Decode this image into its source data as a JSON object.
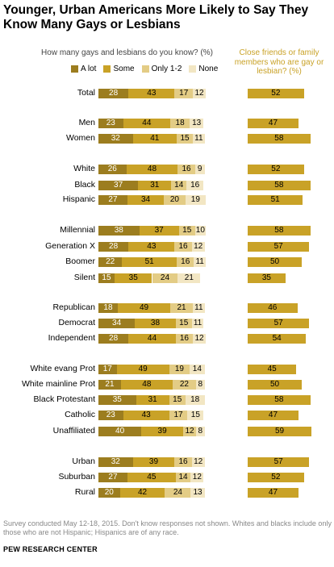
{
  "chart_data": {
    "type": "bar",
    "title": "Younger, Urban Americans More Likely to Say They Know Many Gays or Lesbians",
    "subtitle": "How many gays and lesbians do you know? (%)",
    "right_header": "Close friends or family members who are gay or lesbian? (%)",
    "legend": [
      "A lot",
      "Some",
      "Only 1-2",
      "None"
    ],
    "colors": {
      "a_lot": "#9c7d1f",
      "some": "#c9a227",
      "only12": "#e3cc85",
      "none": "#f2e6c3",
      "close": "#c9a227"
    },
    "rows": [
      {
        "label": "Total",
        "a_lot": 28,
        "some": 43,
        "only12": 17,
        "none": 12,
        "close": 52
      },
      {
        "label": "Men",
        "a_lot": 23,
        "some": 44,
        "only12": 18,
        "none": 13,
        "close": 47
      },
      {
        "label": "Women",
        "a_lot": 32,
        "some": 41,
        "only12": 15,
        "none": 11,
        "close": 58
      },
      {
        "label": "White",
        "a_lot": 26,
        "some": 48,
        "only12": 16,
        "none": 9,
        "close": 52
      },
      {
        "label": "Black",
        "a_lot": 37,
        "some": 31,
        "only12": 14,
        "none": 16,
        "close": 58
      },
      {
        "label": "Hispanic",
        "a_lot": 27,
        "some": 34,
        "only12": 20,
        "none": 19,
        "close": 51
      },
      {
        "label": "Millennial",
        "a_lot": 38,
        "some": 37,
        "only12": 15,
        "none": 10,
        "close": 58
      },
      {
        "label": "Generation X",
        "a_lot": 28,
        "some": 43,
        "only12": 16,
        "none": 12,
        "close": 57
      },
      {
        "label": "Boomer",
        "a_lot": 22,
        "some": 51,
        "only12": 16,
        "none": 11,
        "close": 50
      },
      {
        "label": "Silent",
        "a_lot": 15,
        "some": 35,
        "only12": 24,
        "none": 21,
        "close": 35
      },
      {
        "label": "Republican",
        "a_lot": 18,
        "some": 49,
        "only12": 21,
        "none": 11,
        "close": 46
      },
      {
        "label": "Democrat",
        "a_lot": 34,
        "some": 38,
        "only12": 15,
        "none": 11,
        "close": 57
      },
      {
        "label": "Independent",
        "a_lot": 28,
        "some": 44,
        "only12": 16,
        "none": 12,
        "close": 54
      },
      {
        "label": "White evang Prot",
        "a_lot": 17,
        "some": 49,
        "only12": 19,
        "none": 14,
        "close": 45
      },
      {
        "label": "White mainline Prot",
        "a_lot": 21,
        "some": 48,
        "only12": 22,
        "none": 8,
        "close": 50
      },
      {
        "label": "Black Protestant",
        "a_lot": 35,
        "some": 31,
        "only12": 15,
        "none": 18,
        "close": 58
      },
      {
        "label": "Catholic",
        "a_lot": 23,
        "some": 43,
        "only12": 17,
        "none": 15,
        "close": 47
      },
      {
        "label": "Unaffiliated",
        "a_lot": 40,
        "some": 39,
        "only12": 12,
        "none": 8,
        "close": 59
      },
      {
        "label": "Urban",
        "a_lot": 32,
        "some": 39,
        "only12": 16,
        "none": 12,
        "close": 57
      },
      {
        "label": "Suburban",
        "a_lot": 27,
        "some": 45,
        "only12": 14,
        "none": 12,
        "close": 52
      },
      {
        "label": "Rural",
        "a_lot": 20,
        "some": 42,
        "only12": 24,
        "none": 13,
        "close": 47
      }
    ]
  },
  "note": "Survey conducted May 12-18, 2015. Don't know responses not shown. Whites and blacks include only those who are not Hispanic; Hispanics are of any race.",
  "source": "PEW RESEARCH CENTER"
}
